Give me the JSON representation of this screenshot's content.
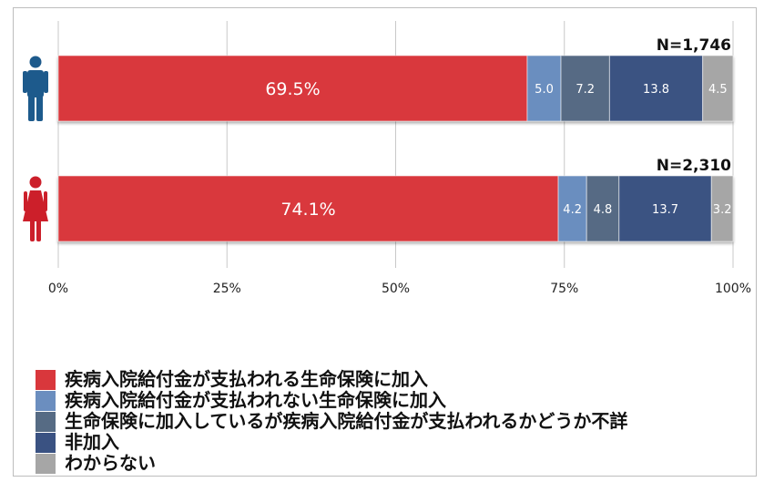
{
  "chart_data": {
    "type": "bar",
    "orientation": "horizontal",
    "stacked": true,
    "xlim": [
      0,
      100
    ],
    "x_tick_labels": [
      "0%",
      "25%",
      "50%",
      "75%",
      "100%"
    ],
    "grid": true,
    "legend_position": "bottom",
    "categories": [
      "男性",
      "女性"
    ],
    "category_icons": [
      "male-person-icon",
      "female-person-icon"
    ],
    "sample_sizes": [
      "N=1,746",
      "N=2,310"
    ],
    "series": [
      {
        "name": "疾病入院給付金が支払われる生命保険に加入",
        "color": "#d9373c",
        "values": [
          69.5,
          74.1
        ],
        "labels": [
          "69.5%",
          "74.1%"
        ]
      },
      {
        "name": "疾病入院給付金が支払われない生命保険に加入",
        "color": "#6b8ebf",
        "values": [
          5.0,
          4.2
        ],
        "labels": [
          "5.0",
          "4.2"
        ]
      },
      {
        "name": "生命保険に加入しているが疾病入院給付金が支払われるかどうか不詳",
        "color": "#566b84",
        "values": [
          7.2,
          4.8
        ],
        "labels": [
          "7.2",
          "4.8"
        ]
      },
      {
        "name": "非加入",
        "color": "#3a5282",
        "values": [
          13.8,
          13.7
        ],
        "labels": [
          "13.8",
          "13.7"
        ]
      },
      {
        "name": "わからない",
        "color": "#a6a6a6",
        "values": [
          4.5,
          3.2
        ],
        "labels": [
          "4.5",
          "3.2"
        ]
      }
    ],
    "icon_colors": {
      "male": "#1d5a8c",
      "female": "#cc1f2a"
    }
  }
}
